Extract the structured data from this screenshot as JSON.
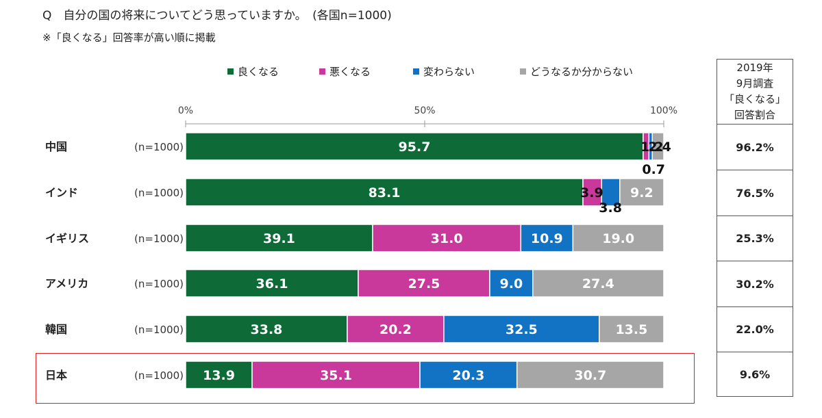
{
  "header": {
    "question": "Q　自分の国の将来についてどう思っていますか。　(各国n=1000)",
    "note": "※「良くなる」回答率が高い順に掲載"
  },
  "chart_data": {
    "type": "bar",
    "orientation": "horizontal",
    "stacked": true,
    "percent_stacked": true,
    "axis": {
      "ticks": [
        "0%",
        "50%",
        "100%"
      ],
      "xlim": [
        0,
        100
      ],
      "ticks_at_top": true
    },
    "categories": [
      "中国",
      "インド",
      "イギリス",
      "アメリカ",
      "韓国",
      "日本"
    ],
    "sample_labels": [
      "(n=1000)",
      "(n=1000)",
      "(n=1000)",
      "(n=1000)",
      "(n=1000)",
      "(n=1000)"
    ],
    "series": [
      {
        "name": "良くなる",
        "color": "#0e6b38",
        "values": [
          95.7,
          83.1,
          39.1,
          36.1,
          33.8,
          13.9
        ]
      },
      {
        "name": "悪くなる",
        "color": "#c8399b",
        "values": [
          1.2,
          3.9,
          31.0,
          27.5,
          20.2,
          35.1
        ]
      },
      {
        "name": "変わらない",
        "color": "#1272c4",
        "values": [
          0.7,
          3.8,
          10.9,
          9.0,
          32.5,
          20.3
        ]
      },
      {
        "name": "どうなるか分からない",
        "color": "#a6a6a6",
        "values": [
          2.4,
          9.2,
          19.0,
          27.4,
          13.5,
          30.7
        ]
      }
    ],
    "labels": [
      [
        "95.7",
        "1.2",
        "0.7",
        "2.4"
      ],
      [
        "83.1",
        "3.9",
        "3.8",
        "9.2"
      ],
      [
        "39.1",
        "31.0",
        "10.9",
        "19.0"
      ],
      [
        "36.1",
        "27.5",
        "9.0",
        "27.4"
      ],
      [
        "33.8",
        "20.2",
        "32.5",
        "13.5"
      ],
      [
        "13.9",
        "35.1",
        "20.3",
        "30.7"
      ]
    ],
    "legend_position": "top",
    "highlighted_category": "日本"
  },
  "comparison": {
    "header_lines": [
      "2019年",
      "9月調査",
      "「良くなる」",
      "回答割合"
    ],
    "values": [
      "96.2%",
      "76.5%",
      "25.3%",
      "30.2%",
      "22.0%",
      "9.6%"
    ]
  }
}
